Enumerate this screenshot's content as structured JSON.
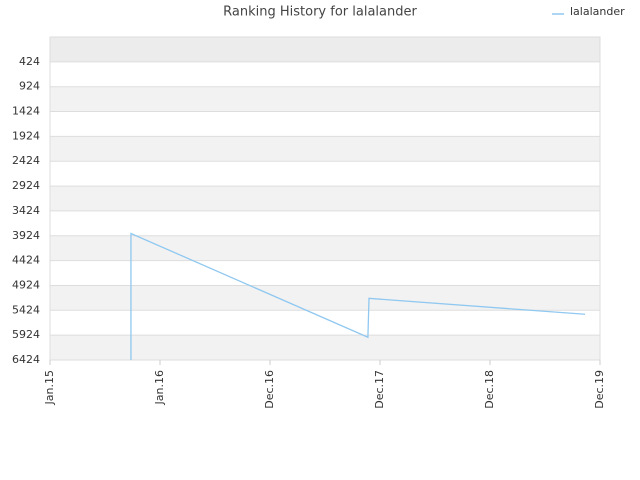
{
  "chart_data": {
    "type": "line",
    "title": "Ranking History for lalalander",
    "x": [
      0.736,
      0.736,
      2.89,
      2.9,
      4.864
    ],
    "series": [
      {
        "name": "lalalander",
        "color": "#90c8f0",
        "values": [
          6424,
          3878,
          5966,
          5183,
          5504
        ]
      }
    ],
    "xlim": [
      0,
      5
    ],
    "xticks": [
      {
        "value": 0,
        "label": "Jan.15"
      },
      {
        "value": 1,
        "label": "Jan.16"
      },
      {
        "value": 2,
        "label": "Dec.16"
      },
      {
        "value": 3,
        "label": "Dec.17"
      },
      {
        "value": 4,
        "label": "Dec.18"
      },
      {
        "value": 5,
        "label": "Dec.19"
      }
    ],
    "ylim": [
      6424,
      -76
    ],
    "yticks": [
      424,
      924,
      1424,
      1924,
      2424,
      2924,
      3424,
      3924,
      4424,
      4924,
      5424,
      5924,
      6424
    ],
    "grid": true,
    "legend": "top-right"
  }
}
